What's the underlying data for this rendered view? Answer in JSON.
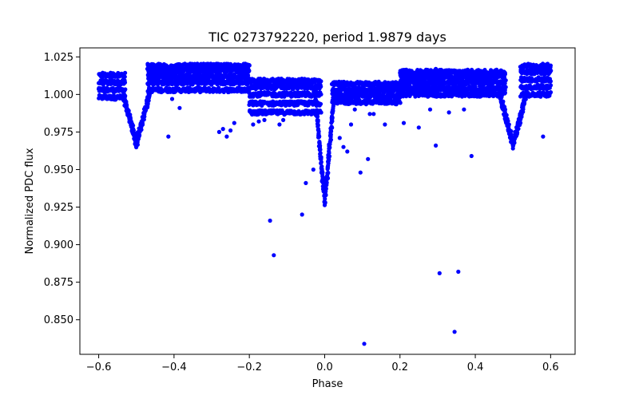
{
  "chart_data": {
    "type": "scatter",
    "title": "TIC 0273792220, period 1.9879 days",
    "xlabel": "Phase",
    "ylabel": "Normalized PDC flux",
    "xlim": [
      -0.65,
      0.665
    ],
    "ylim": [
      0.827,
      1.031
    ],
    "xticks": [
      -0.6,
      -0.4,
      -0.2,
      0.0,
      0.2,
      0.4,
      0.6
    ],
    "xtick_labels": [
      "−0.6",
      "−0.4",
      "−0.2",
      "0.0",
      "0.2",
      "0.4",
      "0.6"
    ],
    "yticks": [
      0.85,
      0.875,
      0.9,
      0.925,
      0.95,
      0.975,
      1.0,
      1.025
    ],
    "ytick_labels": [
      "0.850",
      "0.875",
      "0.900",
      "0.925",
      "0.950",
      "0.975",
      "1.000",
      "1.025"
    ],
    "grid": false,
    "marker_color": "#0000ff",
    "series": [
      {
        "name": "Normalized PDC flux",
        "description": "Dense phased light curve with a primary eclipse at phase 0.0 and secondary eclipses near -0.5 and +0.5",
        "bands": [
          {
            "x0": -0.6,
            "x1": -0.53,
            "y": [
              0.998,
              1.003,
              1.008,
              1.013
            ]
          },
          {
            "x0": -0.47,
            "x1": -0.2,
            "y": [
              1.003,
              1.008,
              1.012,
              1.016,
              1.019
            ]
          },
          {
            "x0": -0.2,
            "x1": -0.01,
            "y": [
              0.988,
              0.994,
              1.0,
              1.005,
              1.009
            ]
          },
          {
            "x0": 0.02,
            "x1": 0.2,
            "y": [
              0.995,
              0.999,
              1.003,
              1.007
            ]
          },
          {
            "x0": 0.2,
            "x1": 0.48,
            "y": [
              1.0,
              1.004,
              1.008,
              1.012,
              1.015
            ]
          },
          {
            "x0": 0.52,
            "x1": 0.6,
            "y": [
              1.0,
              1.005,
              1.01,
              1.015,
              1.019
            ]
          }
        ],
        "eclipses": [
          {
            "center": -0.5,
            "half_width": 0.035,
            "depth_y": 0.967
          },
          {
            "center": 0.0,
            "half_width": 0.025,
            "depth_y": 0.928
          },
          {
            "center": 0.5,
            "half_width": 0.035,
            "depth_y": 0.967
          }
        ],
        "outliers": [
          {
            "x": -0.415,
            "y": 0.972
          },
          {
            "x": -0.405,
            "y": 0.997
          },
          {
            "x": -0.385,
            "y": 0.991
          },
          {
            "x": -0.28,
            "y": 0.975
          },
          {
            "x": -0.27,
            "y": 0.977
          },
          {
            "x": -0.26,
            "y": 0.972
          },
          {
            "x": -0.25,
            "y": 0.976
          },
          {
            "x": -0.24,
            "y": 0.981
          },
          {
            "x": -0.19,
            "y": 0.98
          },
          {
            "x": -0.175,
            "y": 0.982
          },
          {
            "x": -0.16,
            "y": 0.983
          },
          {
            "x": -0.145,
            "y": 0.916
          },
          {
            "x": -0.135,
            "y": 0.893
          },
          {
            "x": -0.12,
            "y": 0.98
          },
          {
            "x": -0.11,
            "y": 0.983
          },
          {
            "x": -0.06,
            "y": 0.92
          },
          {
            "x": -0.05,
            "y": 0.941
          },
          {
            "x": -0.03,
            "y": 0.95
          },
          {
            "x": 0.04,
            "y": 0.971
          },
          {
            "x": 0.05,
            "y": 0.965
          },
          {
            "x": 0.06,
            "y": 0.962
          },
          {
            "x": 0.07,
            "y": 0.98
          },
          {
            "x": 0.08,
            "y": 0.99
          },
          {
            "x": 0.095,
            "y": 0.948
          },
          {
            "x": 0.105,
            "y": 0.834
          },
          {
            "x": 0.115,
            "y": 0.957
          },
          {
            "x": 0.12,
            "y": 0.987
          },
          {
            "x": 0.13,
            "y": 0.987
          },
          {
            "x": 0.16,
            "y": 0.98
          },
          {
            "x": 0.21,
            "y": 0.981
          },
          {
            "x": 0.25,
            "y": 0.978
          },
          {
            "x": 0.28,
            "y": 0.99
          },
          {
            "x": 0.295,
            "y": 0.966
          },
          {
            "x": 0.295,
            "y": 1.017
          },
          {
            "x": 0.305,
            "y": 0.881
          },
          {
            "x": 0.31,
            "y": 1.014
          },
          {
            "x": 0.33,
            "y": 0.988
          },
          {
            "x": 0.345,
            "y": 0.842
          },
          {
            "x": 0.355,
            "y": 0.882
          },
          {
            "x": 0.37,
            "y": 0.99
          },
          {
            "x": 0.39,
            "y": 0.959
          },
          {
            "x": 0.58,
            "y": 0.972
          }
        ]
      }
    ]
  }
}
